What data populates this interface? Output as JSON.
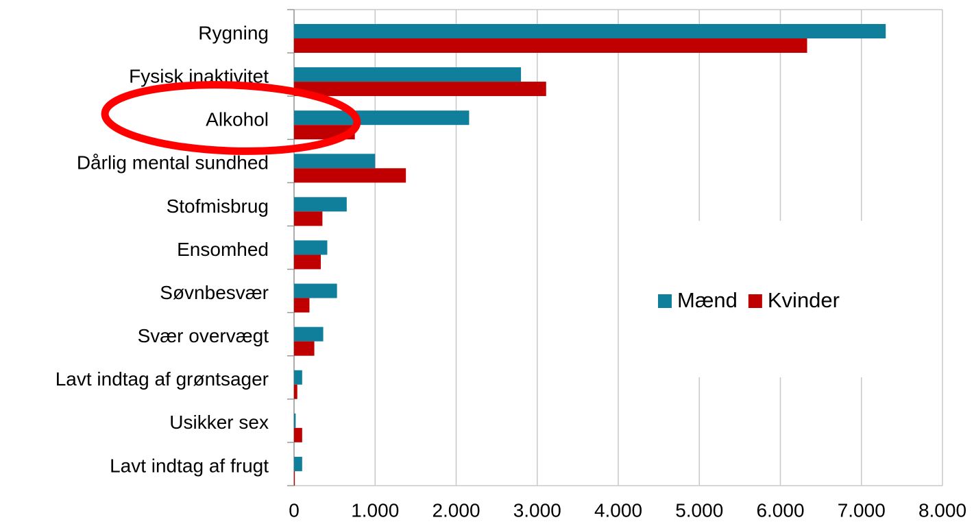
{
  "chart_data": {
    "type": "hbar",
    "categories": [
      "Rygning",
      "Fysisk inaktivitet",
      "Alkohol",
      "Dårlig mental sundhed",
      "Stofmisbrug",
      "Ensomhed",
      "Søvnbesvær",
      "Svær overvægt",
      "Lavt indtag af grøntsager",
      "Usikker sex",
      "Lavt indtag af frugt"
    ],
    "series": [
      {
        "name": "Mænd",
        "color": "#0f7f9c",
        "values": [
          7300,
          2800,
          2160,
          1000,
          650,
          410,
          530,
          360,
          100,
          20,
          100
        ]
      },
      {
        "name": "Kvinder",
        "color": "#c00000",
        "values": [
          6330,
          3110,
          750,
          1380,
          350,
          330,
          190,
          250,
          40,
          100,
          10
        ]
      }
    ],
    "xlim": [
      0,
      8000
    ],
    "xticks": [
      0,
      {
        "value": 1000,
        "label": "1.000"
      },
      {
        "value": 2000,
        "label": "2.000"
      },
      {
        "value": 3000,
        "label": "3.000"
      },
      {
        "value": 4000,
        "label": "4.000"
      },
      {
        "value": 5000,
        "label": "5.000"
      },
      {
        "value": 6000,
        "label": "6.000"
      },
      {
        "value": 7000,
        "label": "7.000"
      },
      {
        "value": 8000,
        "label": "8.000"
      }
    ],
    "grid": true,
    "legend": "right"
  }
}
